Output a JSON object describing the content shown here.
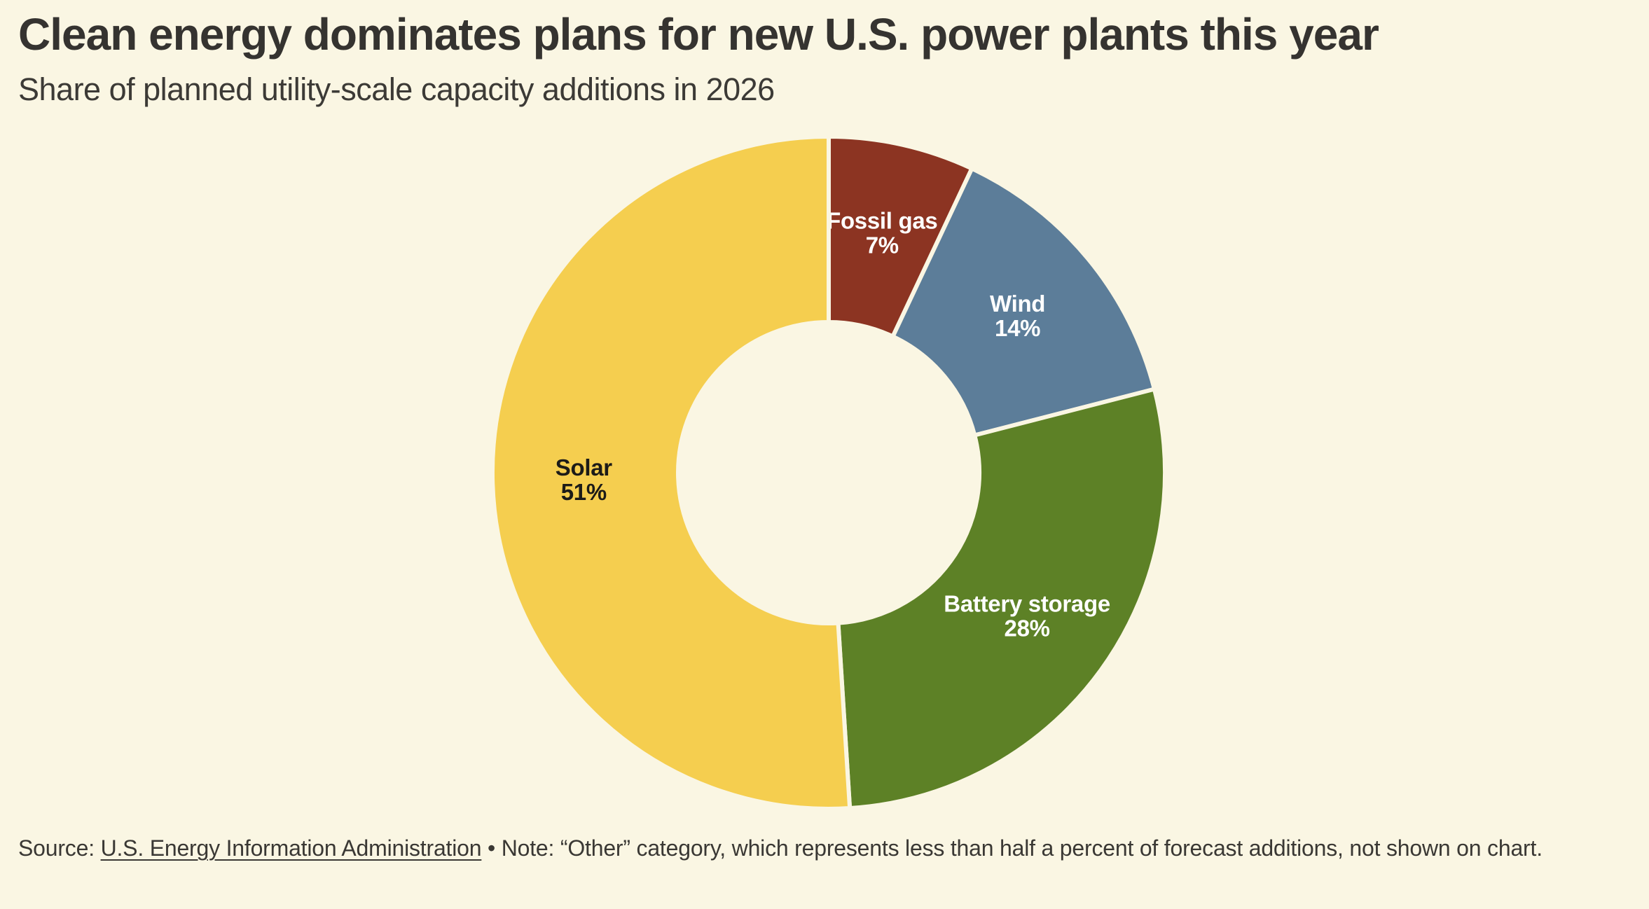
{
  "page": {
    "background_color": "#FAF6E3"
  },
  "header": {
    "title": "Clean energy dominates plans for new U.S. power plants this year",
    "subtitle": "Share of planned utility-scale capacity additions in 2026"
  },
  "chart_data": {
    "type": "pie",
    "subtype": "donut",
    "title": "Clean energy dominates plans for new U.S. power plants this year",
    "subtitle": "Share of planned utility-scale capacity additions in 2026",
    "start_angle_deg": 0,
    "direction": "clockwise",
    "inner_radius_ratio": 0.448,
    "label_radius_ratio": 0.729,
    "separator_color": "#FAF6E3",
    "separator_width": 6,
    "slices": [
      {
        "label": "Fossil gas",
        "value": 7,
        "value_label": "7%",
        "color": "#8C3422",
        "label_color": "#FFFFFF"
      },
      {
        "label": "Wind",
        "value": 14,
        "value_label": "14%",
        "color": "#5C7D99",
        "label_color": "#FFFFFF"
      },
      {
        "label": "Battery storage",
        "value": 28,
        "value_label": "28%",
        "color": "#5D8126",
        "label_color": "#FFFFFF"
      },
      {
        "label": "Solar",
        "value": 51,
        "value_label": "51%",
        "color": "#F5CE4F",
        "label_color": "#1C1B18"
      }
    ]
  },
  "footer": {
    "source_prefix": "Source: ",
    "source_link": "U.S. Energy Information Administration",
    "note": " • Note: “Other” category, which represents less than half a percent of forecast additions, not shown on chart."
  }
}
